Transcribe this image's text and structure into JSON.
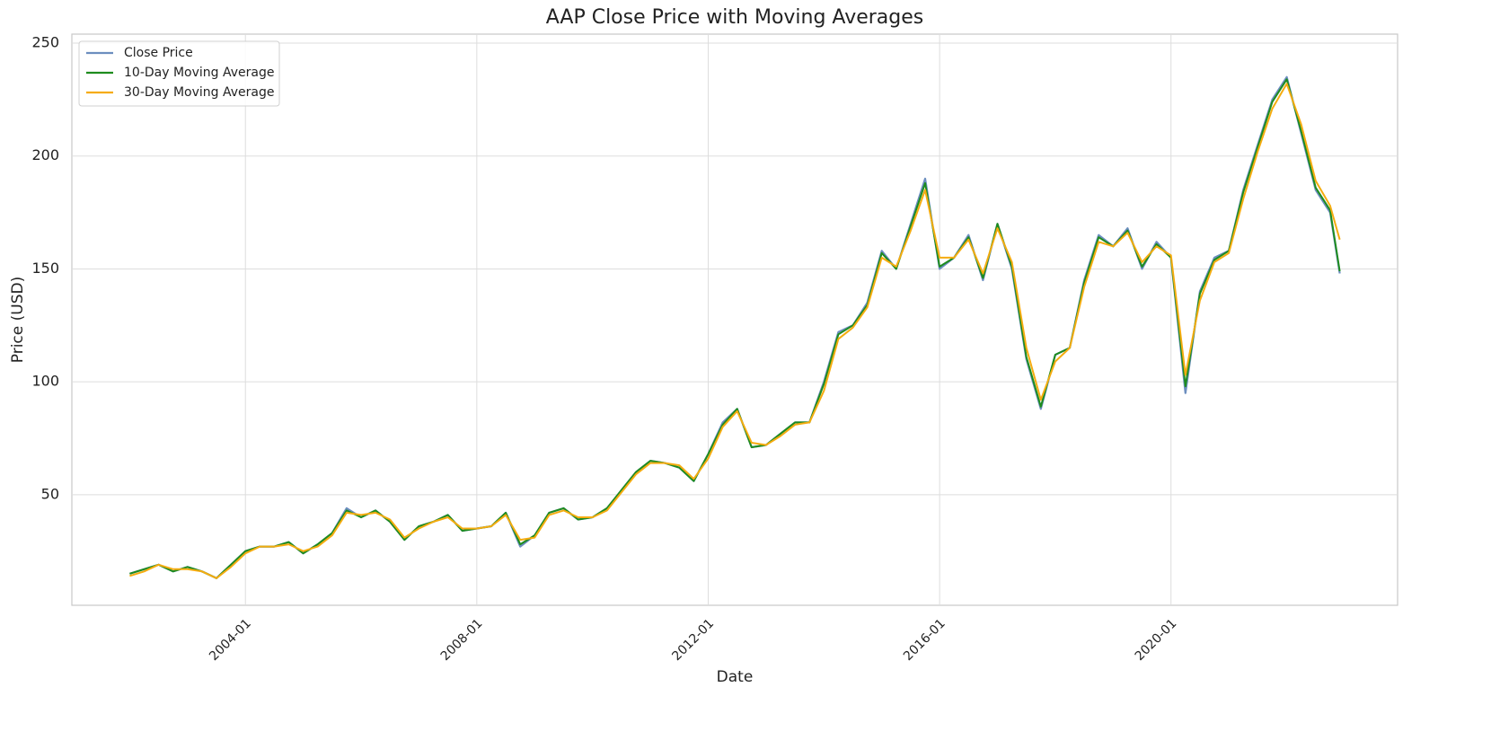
{
  "chart_data": {
    "type": "line",
    "title": "AAP Close Price with Moving Averages",
    "x_label": "Date",
    "y_label": "Price (USD)",
    "x": [
      "2002-01",
      "2002-04",
      "2002-07",
      "2002-10",
      "2003-01",
      "2003-04",
      "2003-07",
      "2003-10",
      "2004-01",
      "2004-04",
      "2004-07",
      "2004-10",
      "2005-01",
      "2005-04",
      "2005-07",
      "2005-10",
      "2006-01",
      "2006-04",
      "2006-07",
      "2006-10",
      "2007-01",
      "2007-04",
      "2007-07",
      "2007-10",
      "2008-01",
      "2008-04",
      "2008-07",
      "2008-10",
      "2009-01",
      "2009-04",
      "2009-07",
      "2009-10",
      "2010-01",
      "2010-04",
      "2010-07",
      "2010-10",
      "2011-01",
      "2011-04",
      "2011-07",
      "2011-10",
      "2012-01",
      "2012-04",
      "2012-07",
      "2012-10",
      "2013-01",
      "2013-04",
      "2013-07",
      "2013-10",
      "2014-01",
      "2014-04",
      "2014-07",
      "2014-10",
      "2015-01",
      "2015-04",
      "2015-07",
      "2015-10",
      "2016-01",
      "2016-04",
      "2016-07",
      "2016-10",
      "2017-01",
      "2017-04",
      "2017-07",
      "2017-10",
      "2018-01",
      "2018-04",
      "2018-07",
      "2018-10",
      "2019-01",
      "2019-04",
      "2019-07",
      "2019-10",
      "2020-01",
      "2020-04",
      "2020-07",
      "2020-10",
      "2021-01",
      "2021-04",
      "2021-07",
      "2021-10",
      "2022-01",
      "2022-04",
      "2022-07",
      "2022-10",
      "2022-12"
    ],
    "series": [
      {
        "name": "Close Price",
        "color": "#6c8ebf",
        "values": [
          15,
          17,
          19,
          16,
          18,
          16,
          13,
          19,
          25,
          27,
          27,
          29,
          24,
          28,
          33,
          44,
          40,
          43,
          38,
          30,
          36,
          38,
          41,
          34,
          35,
          36,
          42,
          27,
          32,
          42,
          44,
          39,
          40,
          44,
          52,
          60,
          65,
          64,
          62,
          56,
          68,
          82,
          88,
          71,
          72,
          77,
          82,
          82,
          100,
          122,
          125,
          135,
          158,
          150,
          170,
          190,
          150,
          155,
          165,
          145,
          170,
          150,
          110,
          88,
          112,
          115,
          145,
          165,
          160,
          168,
          150,
          162,
          155,
          95,
          140,
          155,
          158,
          185,
          205,
          225,
          235,
          210,
          185,
          175,
          148
        ]
      },
      {
        "name": "10-Day Moving Average",
        "color": "#1e8c1e",
        "values": [
          15,
          17,
          19,
          16,
          18,
          16,
          13,
          19,
          25,
          27,
          27,
          29,
          24,
          28,
          33,
          43,
          40,
          43,
          38,
          30,
          36,
          38,
          41,
          34,
          35,
          36,
          42,
          28,
          32,
          42,
          44,
          39,
          40,
          44,
          52,
          60,
          65,
          64,
          62,
          56,
          68,
          81,
          88,
          71,
          72,
          77,
          82,
          82,
          99,
          121,
          125,
          134,
          157,
          150,
          169,
          188,
          151,
          155,
          164,
          146,
          170,
          151,
          111,
          89,
          112,
          115,
          144,
          164,
          160,
          167,
          151,
          161,
          155,
          98,
          139,
          154,
          158,
          184,
          204,
          224,
          234,
          211,
          186,
          176,
          149
        ]
      },
      {
        "name": "30-Day Moving Average",
        "color": "#f5ac10",
        "values": [
          14,
          16,
          19,
          17,
          17,
          16,
          13,
          18,
          24,
          27,
          27,
          28,
          25,
          27,
          32,
          42,
          41,
          42,
          39,
          31,
          35,
          38,
          40,
          35,
          35,
          36,
          41,
          30,
          31,
          41,
          43,
          40,
          40,
          43,
          51,
          59,
          64,
          64,
          63,
          57,
          66,
          80,
          87,
          73,
          72,
          76,
          81,
          82,
          96,
          119,
          124,
          133,
          155,
          151,
          167,
          185,
          155,
          155,
          163,
          148,
          168,
          153,
          115,
          92,
          109,
          115,
          142,
          162,
          160,
          166,
          153,
          160,
          156,
          103,
          136,
          153,
          157,
          181,
          202,
          221,
          232,
          214,
          189,
          178,
          163
        ]
      }
    ],
    "xlim": [
      "2001-01",
      "2023-12"
    ],
    "xticks": [
      "2004-01",
      "2008-01",
      "2012-01",
      "2016-01",
      "2020-01"
    ],
    "ylim": [
      1,
      254
    ],
    "yticks": [
      50,
      100,
      150,
      200,
      250
    ],
    "grid": true,
    "legend": "upper left"
  }
}
